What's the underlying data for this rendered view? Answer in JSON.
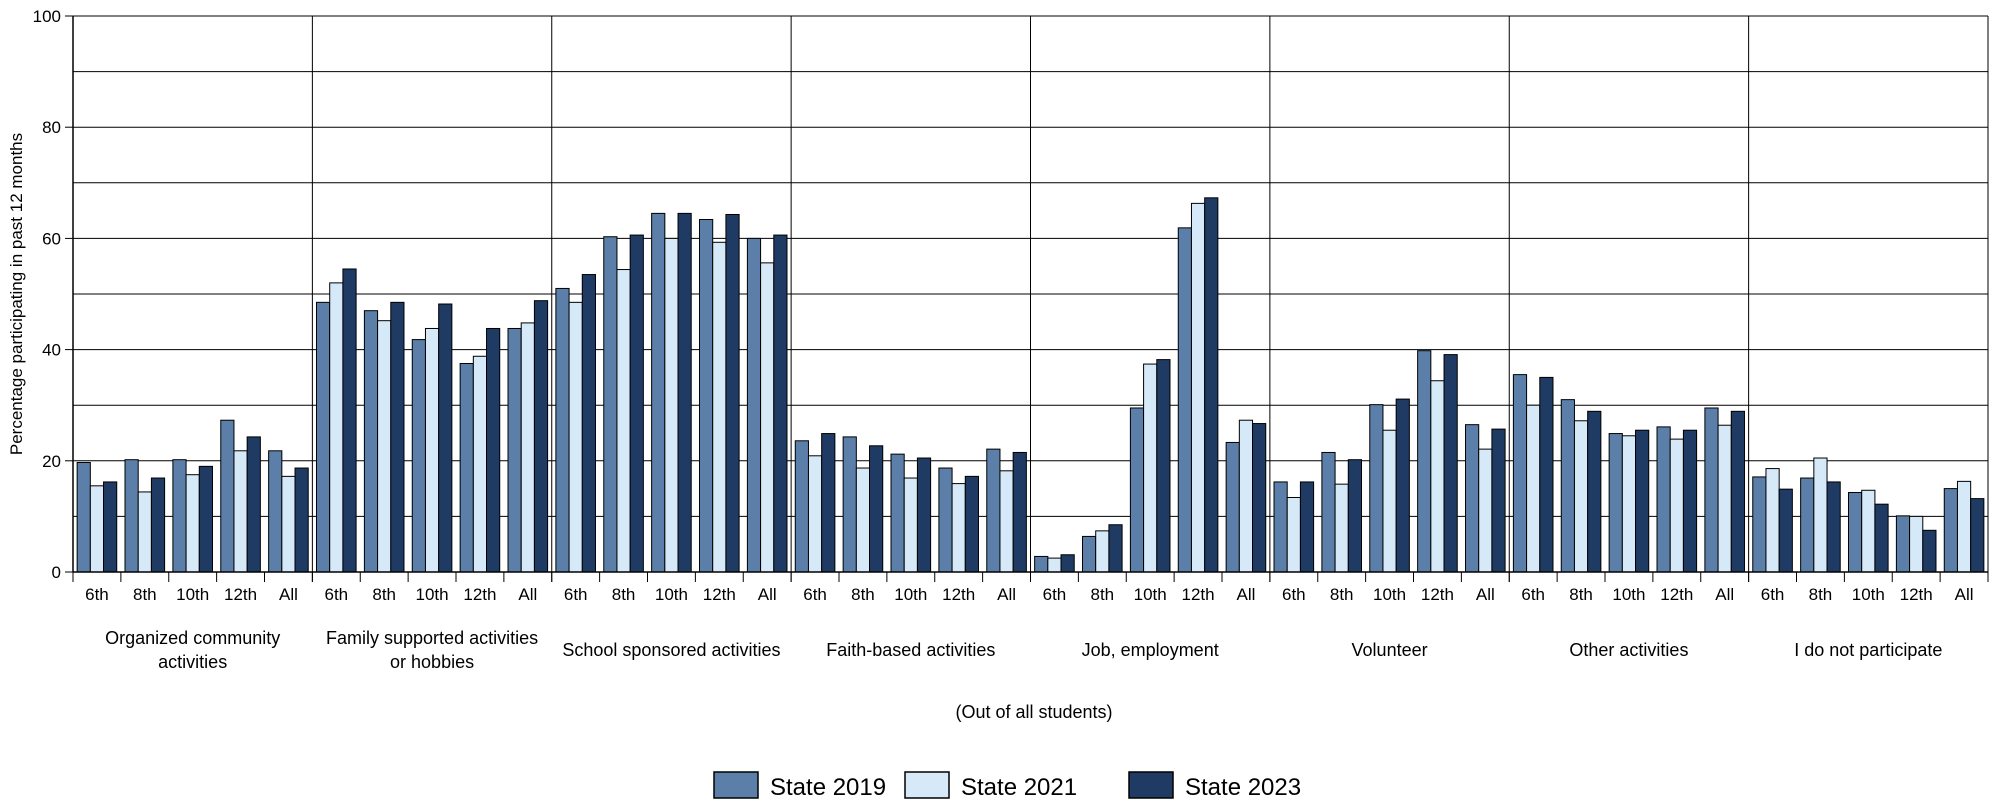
{
  "chart_data": {
    "type": "bar",
    "ylabel": "Percentage participating in past 12 months",
    "xlabel": "(Out of all students)",
    "ylim": [
      0,
      100
    ],
    "yticks": [
      0,
      20,
      40,
      60,
      80,
      100
    ],
    "grid": true,
    "legend_position": "bottom-center",
    "grades": [
      "6th",
      "8th",
      "10th",
      "12th",
      "All"
    ],
    "series": [
      {
        "name": "State 2019",
        "color": "#5b7fa8"
      },
      {
        "name": "State 2021",
        "color": "#d6e9f8"
      },
      {
        "name": "State 2023",
        "color": "#1f3a63"
      }
    ],
    "groups": [
      {
        "label_lines": [
          "Organized community",
          "activities"
        ],
        "values": [
          [
            19.7,
            15.5,
            16.2
          ],
          [
            20.2,
            14.4,
            16.9
          ],
          [
            20.2,
            17.5,
            19.0
          ],
          [
            27.3,
            21.8,
            24.3
          ],
          [
            21.8,
            17.2,
            18.7
          ]
        ]
      },
      {
        "label_lines": [
          "Family supported activities",
          "or hobbies"
        ],
        "values": [
          [
            48.5,
            52.0,
            54.5
          ],
          [
            47.0,
            45.2,
            48.5
          ],
          [
            41.8,
            43.8,
            48.2
          ],
          [
            37.5,
            38.8,
            43.8
          ],
          [
            43.8,
            44.8,
            48.8
          ]
        ]
      },
      {
        "label_lines": [
          "School sponsored activities"
        ],
        "values": [
          [
            51.0,
            48.5,
            53.5
          ],
          [
            60.3,
            54.4,
            60.6
          ],
          [
            64.5,
            60.0,
            64.5
          ],
          [
            63.4,
            59.3,
            64.3
          ],
          [
            60.0,
            55.6,
            60.6
          ]
        ]
      },
      {
        "label_lines": [
          "Faith-based activities"
        ],
        "values": [
          [
            23.6,
            20.9,
            24.9
          ],
          [
            24.3,
            18.7,
            22.7
          ],
          [
            21.2,
            16.9,
            20.5
          ],
          [
            18.7,
            15.9,
            17.2
          ],
          [
            22.1,
            18.2,
            21.5
          ]
        ]
      },
      {
        "label_lines": [
          "Job, employment"
        ],
        "values": [
          [
            2.8,
            2.5,
            3.1
          ],
          [
            6.4,
            7.4,
            8.5
          ],
          [
            29.5,
            37.4,
            38.2
          ],
          [
            61.9,
            66.3,
            67.3
          ],
          [
            23.3,
            27.3,
            26.7
          ]
        ]
      },
      {
        "label_lines": [
          "Volunteer"
        ],
        "values": [
          [
            16.2,
            13.4,
            16.2
          ],
          [
            21.5,
            15.8,
            20.2
          ],
          [
            30.1,
            25.5,
            31.1
          ],
          [
            39.8,
            34.4,
            39.1
          ],
          [
            26.5,
            22.1,
            25.7
          ]
        ]
      },
      {
        "label_lines": [
          "Other activities"
        ],
        "values": [
          [
            35.5,
            30.0,
            35.0
          ],
          [
            31.0,
            27.2,
            28.9
          ],
          [
            24.9,
            24.5,
            25.5
          ],
          [
            26.1,
            23.9,
            25.5
          ],
          [
            29.5,
            26.4,
            28.9
          ]
        ]
      },
      {
        "label_lines": [
          "I do not participate"
        ],
        "values": [
          [
            17.1,
            18.6,
            14.9
          ],
          [
            16.9,
            20.5,
            16.2
          ],
          [
            14.3,
            14.7,
            12.2
          ],
          [
            10.1,
            10.0,
            7.5
          ],
          [
            15.0,
            16.3,
            13.2
          ]
        ]
      }
    ]
  }
}
